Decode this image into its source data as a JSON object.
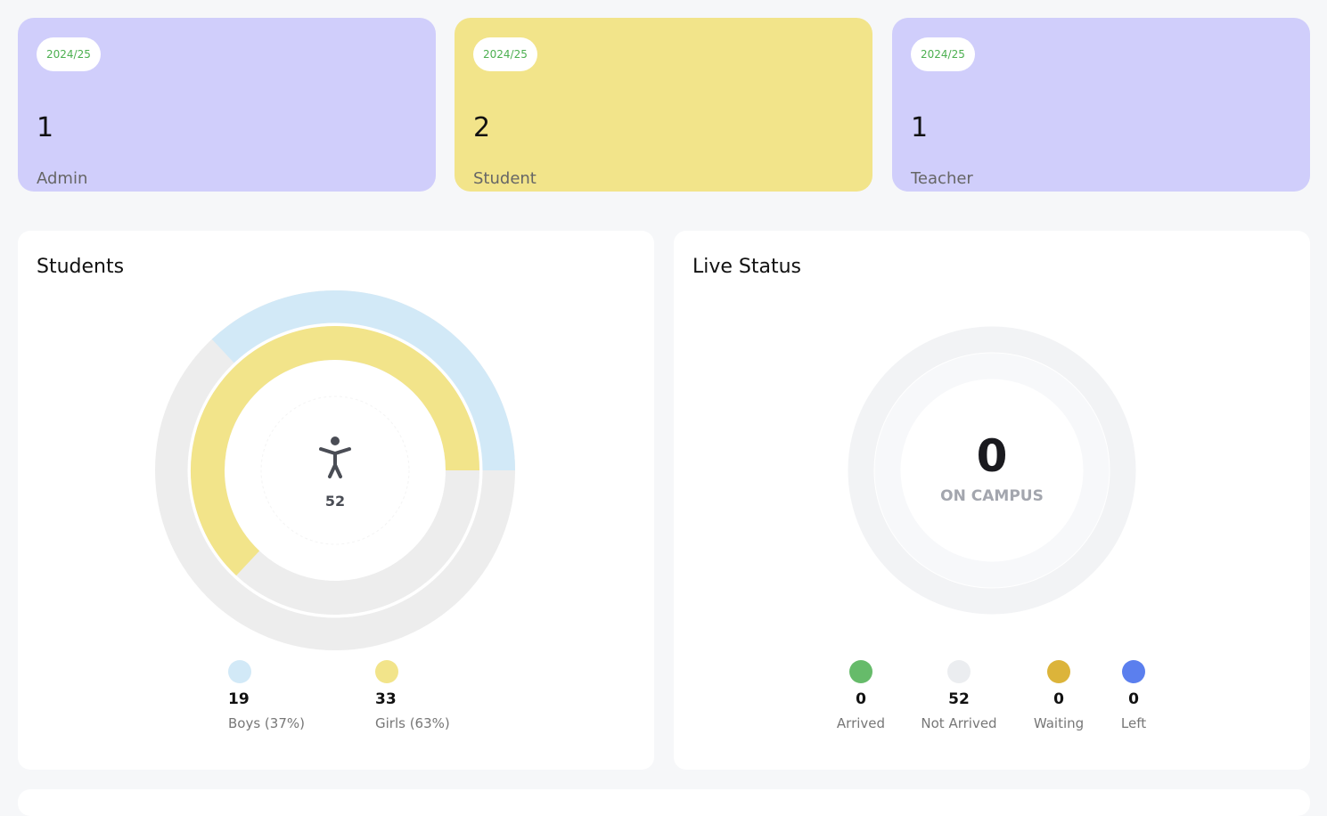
{
  "cards": [
    {
      "badge": "2024/25",
      "count": "1",
      "label": "Admin",
      "color": "#d0cefb"
    },
    {
      "badge": "2024/25",
      "count": "2",
      "label": "Student",
      "color": "#f2e48a"
    },
    {
      "badge": "2024/25",
      "count": "1",
      "label": "Teacher",
      "color": "#d0cefb"
    }
  ],
  "students": {
    "title": "Students",
    "total": "52",
    "icon": "accessibility-person-icon",
    "legend": [
      {
        "count": "19",
        "label": "Boys (37%)",
        "color": "#d2e9f7",
        "percent": 37
      },
      {
        "count": "33",
        "label": "Girls (63%)",
        "color": "#f2e48a",
        "percent": 63
      }
    ]
  },
  "live": {
    "title": "Live Status",
    "count": "0",
    "caption": "ON CAMPUS",
    "legend": [
      {
        "count": "0",
        "label": "Arrived",
        "color": "#66bb6a"
      },
      {
        "count": "52",
        "label": "Not Arrived",
        "color": "#ebedf0"
      },
      {
        "count": "0",
        "label": "Waiting",
        "color": "#dcb43a"
      },
      {
        "count": "0",
        "label": "Left",
        "color": "#5b7fee"
      }
    ]
  }
}
